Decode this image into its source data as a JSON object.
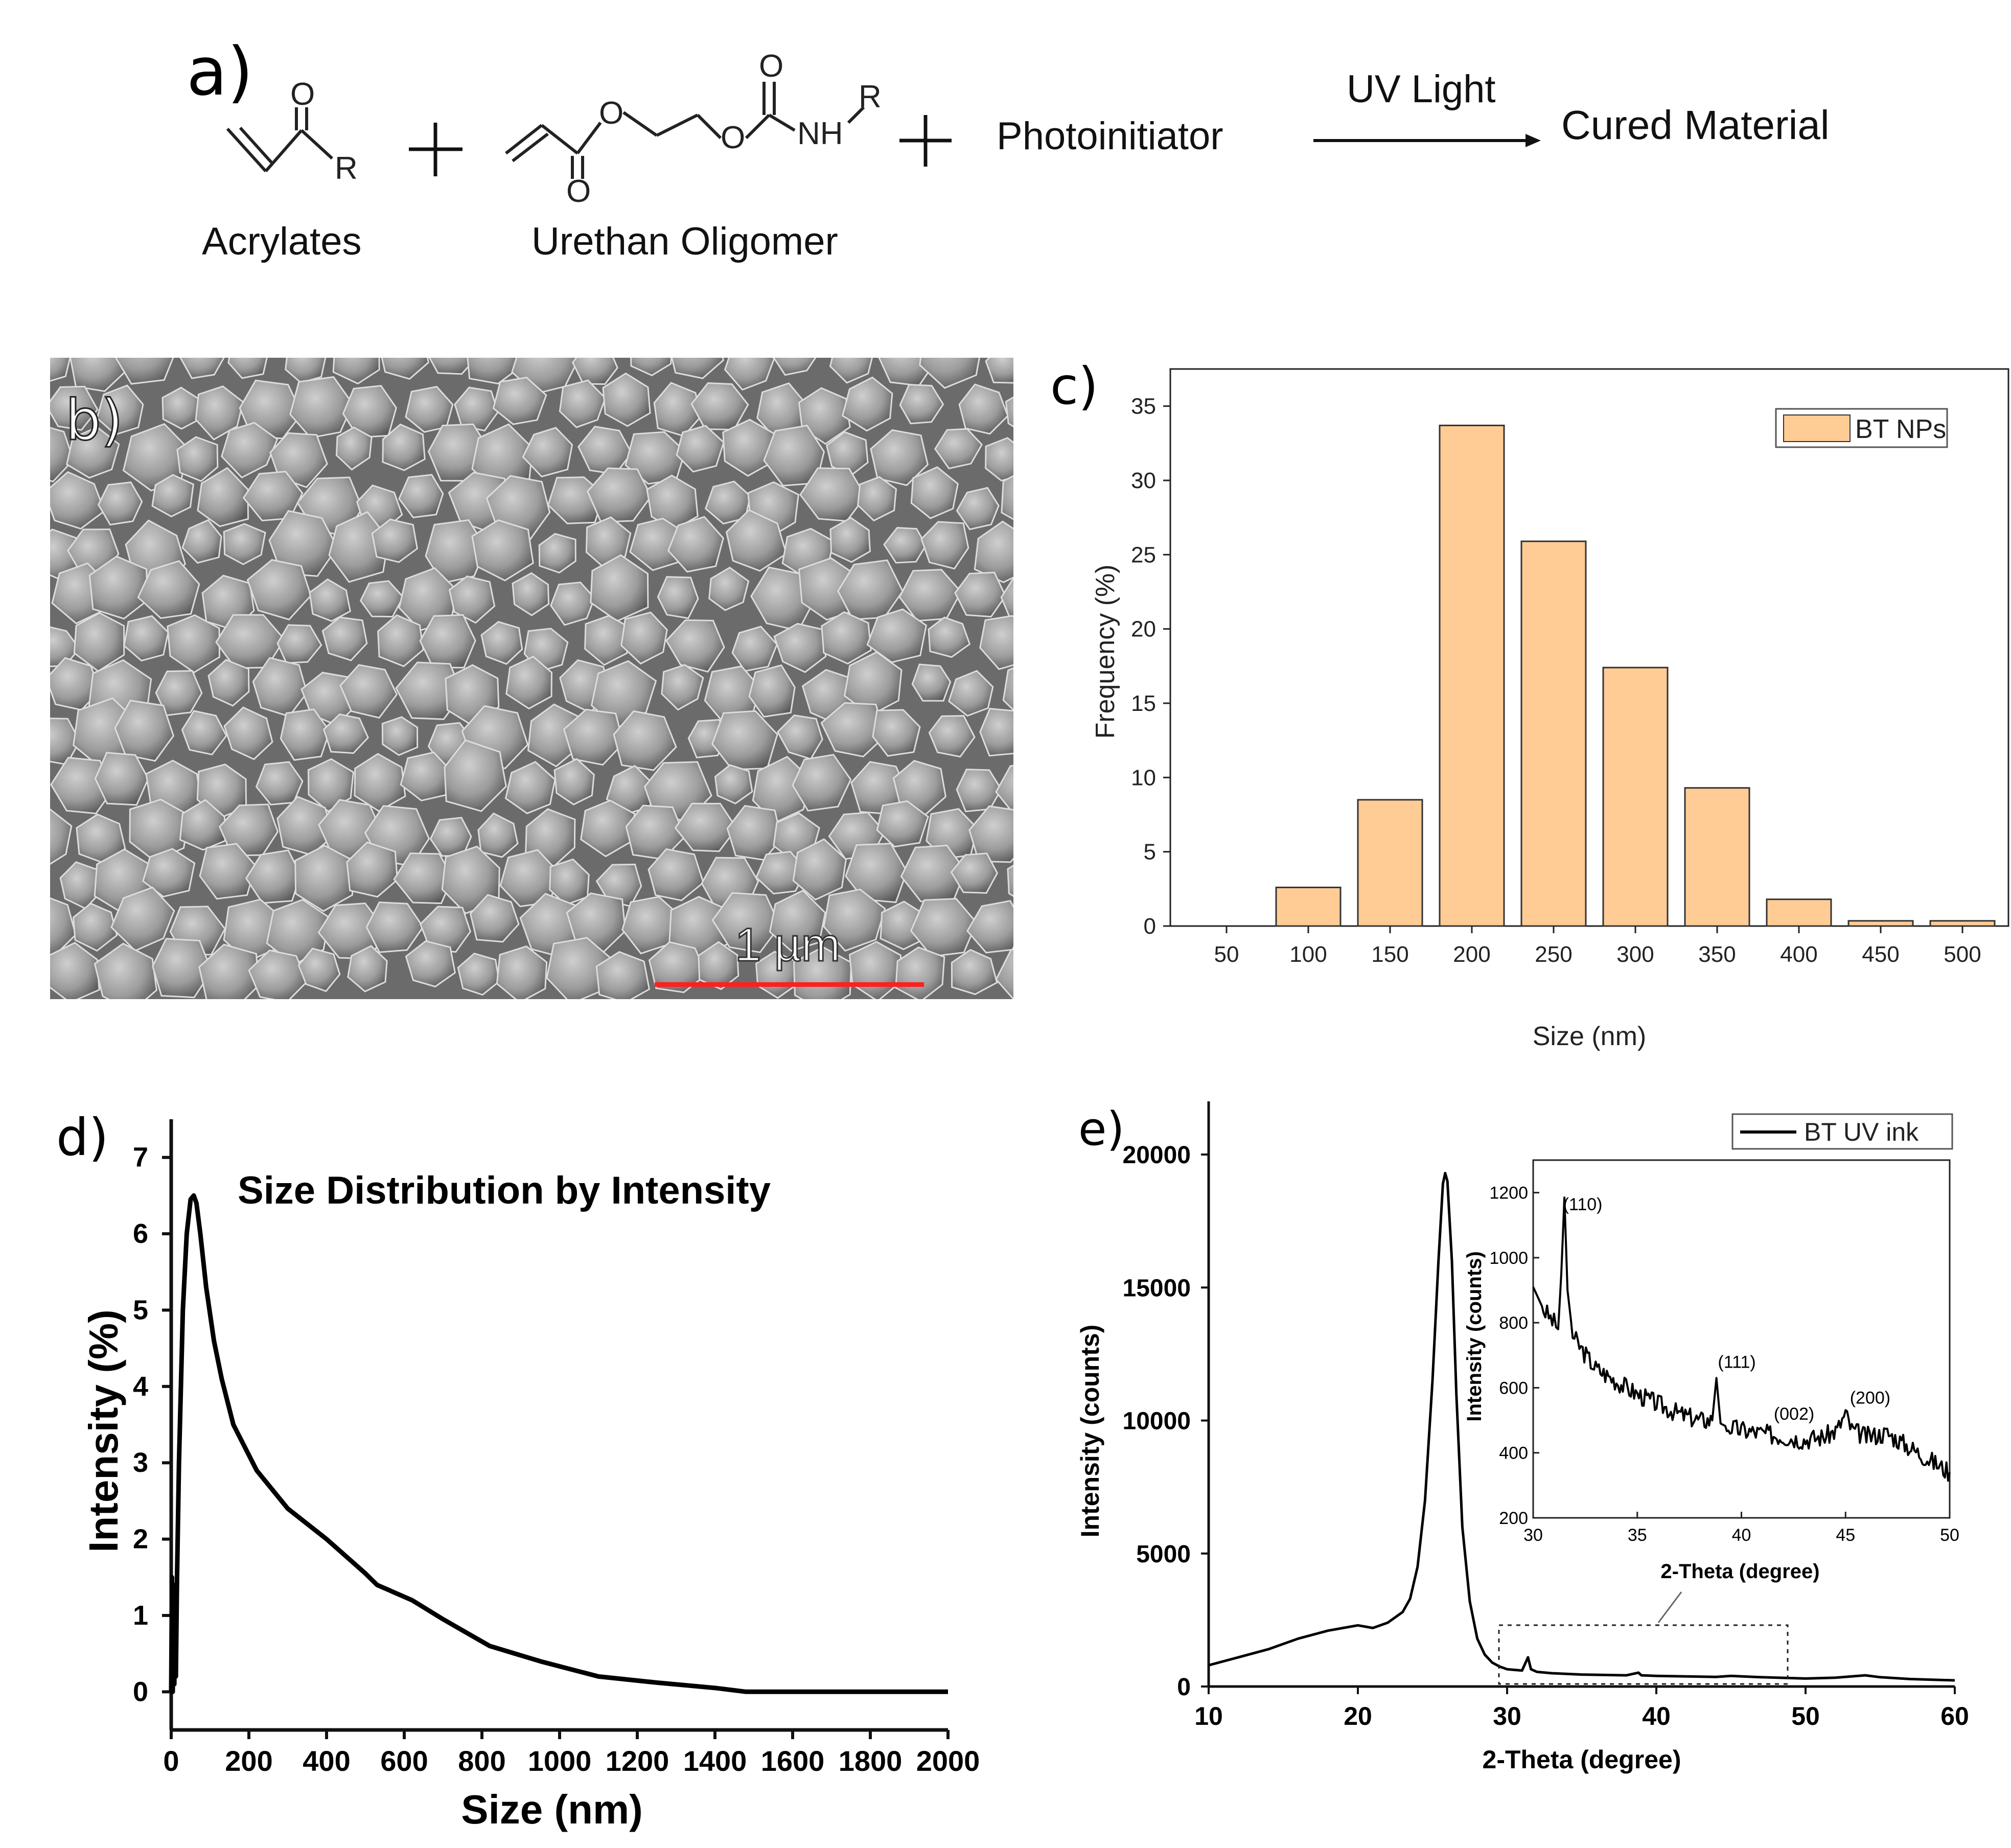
{
  "panel_labels": {
    "a": "a)",
    "b": "b)",
    "c": "c)",
    "d": "d)",
    "e": "e)"
  },
  "reaction": {
    "acrylates_label": "Acrylates",
    "oligomer_label": "Urethan Oligomer",
    "photoinitiator_label": "Photoinitiator",
    "arrow_condition": "UV Light",
    "product_label": "Cured Material",
    "plus": "+",
    "atoms": {
      "O": "O",
      "R": "R",
      "NH": "NH"
    }
  },
  "sem_image": {
    "scale_bar_label": "1 µm",
    "scale_bar_color": "#ff2020"
  },
  "colors": {
    "bar_fill": "#ffcc96",
    "line": "#000000",
    "sem_background": "#8a8a8a"
  },
  "chart_data": [
    {
      "id": "c",
      "type": "bar",
      "title": "",
      "xlabel": "Size (nm)",
      "ylabel": "Frequency (%)",
      "categories": [
        "50",
        "100",
        "150",
        "200",
        "250",
        "300",
        "350",
        "400",
        "450",
        "500"
      ],
      "values": [
        0,
        2.6,
        8.5,
        33.7,
        25.9,
        17.4,
        9.3,
        1.8,
        0.35,
        0.35
      ],
      "ylim": [
        0,
        37.5
      ],
      "yticks": [
        0,
        5,
        10,
        15,
        20,
        25,
        30,
        35
      ],
      "legend": {
        "label": "BT NPs",
        "position": "top-right"
      }
    },
    {
      "id": "d",
      "type": "line",
      "title": "Size Distribution by Intensity",
      "xlabel": "Size (nm)",
      "ylabel": "Intensity (%)",
      "xlim": [
        0,
        2000
      ],
      "ylim": [
        -0.5,
        7.5
      ],
      "xticks": [
        0,
        200,
        400,
        600,
        800,
        1000,
        1200,
        1400,
        1600,
        1800,
        2000
      ],
      "yticks": [
        0,
        1,
        2,
        3,
        4,
        5,
        6,
        7
      ],
      "x": [
        0,
        2,
        4,
        6,
        8,
        10,
        12,
        15,
        20,
        30,
        40,
        50,
        58,
        65,
        75,
        90,
        110,
        130,
        160,
        220,
        300,
        400,
        500,
        530,
        620,
        700,
        820,
        950,
        1100,
        1250,
        1400,
        1480,
        1600,
        1800,
        2000
      ],
      "y": [
        0,
        1.5,
        0,
        1.4,
        0.1,
        1.2,
        0.2,
        1.5,
        3.0,
        5.0,
        6.0,
        6.45,
        6.5,
        6.4,
        6.0,
        5.3,
        4.6,
        4.1,
        3.5,
        2.9,
        2.4,
        2.0,
        1.55,
        1.4,
        1.2,
        0.95,
        0.6,
        0.4,
        0.2,
        0.12,
        0.05,
        0.0,
        0.0,
        0.0,
        0.0
      ]
    },
    {
      "id": "e",
      "type": "line",
      "title": "",
      "xlabel": "2-Theta (degree)",
      "ylabel": "Intensity (counts)",
      "xlim": [
        10,
        60
      ],
      "ylim": [
        0,
        22000
      ],
      "xticks": [
        10,
        20,
        30,
        40,
        50,
        60
      ],
      "yticks": [
        0,
        5000,
        10000,
        15000,
        20000
      ],
      "legend": {
        "label": "BT UV ink",
        "position": "top-right"
      },
      "x": [
        10,
        12,
        14,
        16,
        18,
        19,
        20,
        21,
        22,
        23,
        23.5,
        24,
        24.5,
        25,
        25.4,
        25.7,
        25.85,
        26,
        26.3,
        26.6,
        27,
        27.5,
        28,
        28.5,
        29,
        29.5,
        30,
        31,
        31.4,
        31.6,
        32,
        33,
        35,
        38,
        38.8,
        39,
        40,
        42,
        44,
        45,
        47,
        50,
        52,
        54,
        55,
        57,
        60
      ],
      "y": [
        800,
        1100,
        1400,
        1800,
        2100,
        2200,
        2300,
        2200,
        2400,
        2800,
        3300,
        4500,
        7000,
        11500,
        16000,
        18900,
        19300,
        19000,
        16000,
        11000,
        6000,
        3200,
        1800,
        1200,
        900,
        750,
        650,
        600,
        1100,
        650,
        550,
        500,
        450,
        420,
        520,
        420,
        400,
        380,
        360,
        400,
        350,
        300,
        330,
        420,
        350,
        280,
        230
      ],
      "inset": {
        "xlabel": "2-Theta (degree)",
        "ylabel": "Intensity (counts)",
        "xlim": [
          30,
          50
        ],
        "ylim": [
          200,
          1300
        ],
        "xticks": [
          30,
          35,
          40,
          45,
          50
        ],
        "yticks": [
          200,
          400,
          600,
          800,
          1000,
          1200
        ],
        "x": [
          30,
          30.5,
          31,
          31.2,
          31.35,
          31.5,
          31.65,
          31.9,
          32.3,
          33,
          34,
          35,
          36,
          37,
          38,
          38.6,
          38.8,
          39.0,
          39.3,
          40,
          41,
          42,
          43,
          44,
          44.6,
          45.0,
          45.3,
          46,
          47,
          48,
          49,
          50
        ],
        "y": [
          910,
          840,
          800,
          780,
          950,
          1185,
          900,
          760,
          720,
          660,
          620,
          580,
          550,
          520,
          500,
          500,
          630,
          490,
          480,
          470,
          460,
          450,
          440,
          450,
          470,
          520,
          470,
          450,
          460,
          420,
          380,
          340
        ],
        "annotations": [
          {
            "label": "(110)",
            "x": 31.4,
            "y": 1185
          },
          {
            "label": "(111)",
            "x": 38.8,
            "y": 630
          },
          {
            "label": "(002)",
            "x": 44.0,
            "y": 470
          },
          {
            "label": "(200)",
            "x": 45.2,
            "y": 520
          }
        ]
      }
    }
  ]
}
